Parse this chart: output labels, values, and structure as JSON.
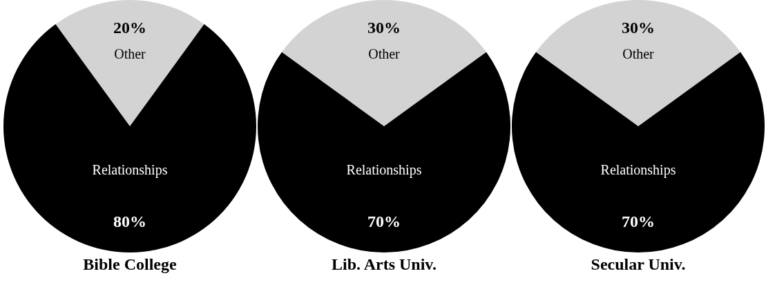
{
  "chart_data": [
    {
      "type": "pie",
      "title": "Bible College",
      "categories": [
        "Other",
        "Relationships"
      ],
      "values": [
        20,
        80
      ],
      "colors": [
        "#d3d3d3",
        "#000000"
      ],
      "value_labels": [
        "20%",
        "80%"
      ]
    },
    {
      "type": "pie",
      "title": "Lib. Arts Univ.",
      "categories": [
        "Other",
        "Relationships"
      ],
      "values": [
        30,
        70
      ],
      "colors": [
        "#d3d3d3",
        "#000000"
      ],
      "value_labels": [
        "30%",
        "70%"
      ]
    },
    {
      "type": "pie",
      "title": "Secular Univ.",
      "categories": [
        "Other",
        "Relationships"
      ],
      "values": [
        30,
        70
      ],
      "colors": [
        "#d3d3d3",
        "#000000"
      ],
      "value_labels": [
        "30%",
        "70%"
      ]
    }
  ]
}
